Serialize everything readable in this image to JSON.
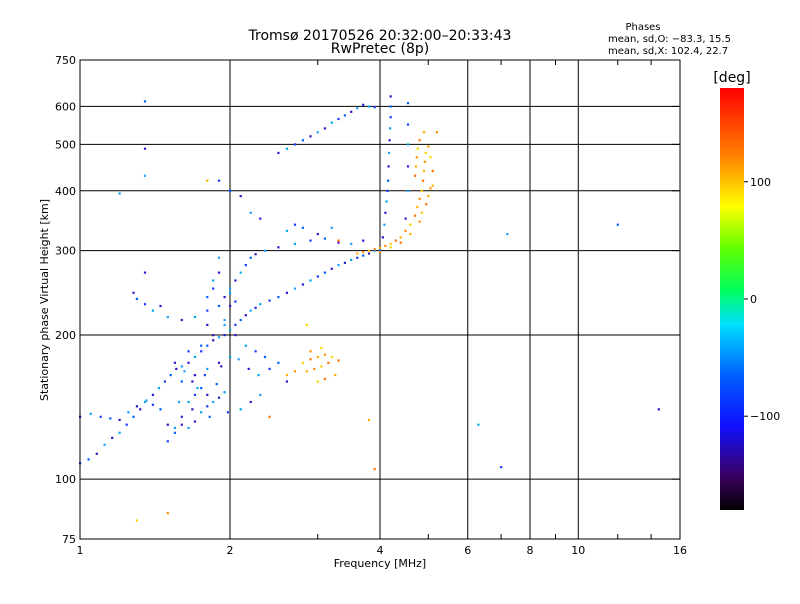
{
  "header": {
    "title": "Tromsø 20170526 20:32:00–20:33:43",
    "subtitle": "RwPretec (8p)"
  },
  "phase_box": {
    "heading": "Phases",
    "line_o": "mean, sd,O: −83.3, 15.5",
    "line_x": "mean, sd,X: 102.4, 22.7"
  },
  "chart_data": {
    "type": "scatter",
    "title": "Tromsø 20170526 20:32:00–20:33:43",
    "subtitle": "RwPretec (8p)",
    "xlabel": "Frequency [MHz]",
    "ylabel": "Stationary phase Virtual Height [km]",
    "x_scale": "log",
    "y_scale": "log",
    "xlim": [
      1,
      16
    ],
    "ylim": [
      75,
      750
    ],
    "x_ticks": [
      1,
      2,
      4,
      6,
      8,
      10,
      16
    ],
    "x_tick_labels": [
      "1",
      "2",
      "4",
      "6",
      "8",
      "10",
      "16"
    ],
    "y_ticks": [
      75,
      100,
      200,
      300,
      400,
      500,
      600,
      750
    ],
    "y_tick_labels": [
      "75",
      "100",
      "200",
      "300",
      "400",
      "500",
      "600",
      "750"
    ],
    "grid": true,
    "colorbar": {
      "label": "[deg]",
      "range": [
        -180,
        180
      ],
      "ticks": [
        100,
        0,
        -100
      ],
      "tick_labels": [
        "100",
        "0",
        "−100"
      ]
    },
    "series": [
      {
        "values": [
          [
            1.0,
            108
          ],
          [
            1.04,
            110
          ],
          [
            1.08,
            113
          ],
          [
            1.12,
            118
          ],
          [
            1.16,
            122
          ],
          [
            1.2,
            125
          ],
          [
            1.24,
            130
          ],
          [
            1.28,
            135
          ],
          [
            1.32,
            140
          ],
          [
            1.36,
            146
          ],
          [
            1.4,
            150
          ],
          [
            1.44,
            155
          ],
          [
            1.48,
            160
          ],
          [
            1.52,
            165
          ],
          [
            1.56,
            170
          ],
          [
            1.6,
            172
          ],
          [
            1.65,
            175
          ],
          [
            1.7,
            180
          ],
          [
            1.75,
            185
          ],
          [
            1.8,
            190
          ],
          [
            1.85,
            195
          ],
          [
            1.9,
            198
          ],
          [
            1.95,
            200
          ],
          [
            2.0,
            205
          ],
          [
            2.05,
            210
          ],
          [
            2.1,
            215
          ],
          [
            2.15,
            220
          ],
          [
            2.2,
            225
          ],
          [
            2.25,
            228
          ],
          [
            2.3,
            232
          ],
          [
            2.4,
            236
          ],
          [
            2.5,
            240
          ],
          [
            2.6,
            245
          ],
          [
            2.7,
            250
          ],
          [
            2.8,
            255
          ],
          [
            2.9,
            260
          ],
          [
            3.0,
            265
          ],
          [
            3.1,
            270
          ],
          [
            3.2,
            275
          ],
          [
            3.3,
            280
          ],
          [
            3.4,
            283
          ],
          [
            3.5,
            287
          ],
          [
            3.6,
            290
          ],
          [
            3.7,
            293
          ],
          [
            3.8,
            296
          ],
          [
            3.9,
            300
          ],
          [
            1.0,
            135
          ],
          [
            1.05,
            137
          ],
          [
            1.1,
            135
          ],
          [
            1.15,
            134
          ],
          [
            1.2,
            133
          ],
          [
            1.25,
            138
          ],
          [
            1.3,
            142
          ],
          [
            1.35,
            145
          ],
          [
            1.4,
            143
          ],
          [
            1.45,
            140
          ],
          [
            1.5,
            130
          ],
          [
            1.55,
            128
          ],
          [
            1.6,
            135
          ],
          [
            1.65,
            145
          ],
          [
            1.7,
            150
          ],
          [
            1.75,
            155
          ],
          [
            1.8,
            150
          ],
          [
            1.85,
            145
          ],
          [
            1.9,
            148
          ],
          [
            1.95,
            152
          ],
          [
            1.5,
            120
          ],
          [
            1.55,
            125
          ],
          [
            1.6,
            130
          ],
          [
            1.65,
            128
          ],
          [
            1.7,
            132
          ],
          [
            1.75,
            138
          ],
          [
            1.8,
            142
          ],
          [
            1.6,
            160
          ],
          [
            1.7,
            165
          ],
          [
            1.8,
            170
          ],
          [
            1.9,
            175
          ],
          [
            2.0,
            180
          ],
          [
            1.65,
            185
          ],
          [
            1.75,
            190
          ],
          [
            1.85,
            200
          ],
          [
            1.95,
            210
          ],
          [
            2.05,
            200
          ],
          [
            2.15,
            190
          ],
          [
            2.25,
            185
          ],
          [
            2.35,
            180
          ],
          [
            1.55,
            175
          ],
          [
            1.62,
            168
          ],
          [
            1.68,
            160
          ],
          [
            1.72,
            155
          ],
          [
            1.78,
            165
          ],
          [
            1.88,
            158
          ],
          [
            1.92,
            172
          ],
          [
            2.08,
            178
          ],
          [
            2.18,
            170
          ],
          [
            2.28,
            165
          ],
          [
            2.4,
            170
          ],
          [
            2.5,
            175
          ],
          [
            2.6,
            160
          ],
          [
            2.3,
            150
          ],
          [
            2.2,
            145
          ],
          [
            2.1,
            140
          ],
          [
            1.98,
            138
          ],
          [
            1.82,
            135
          ],
          [
            1.68,
            140
          ],
          [
            1.58,
            145
          ],
          [
            1.45,
            230
          ],
          [
            1.4,
            225
          ],
          [
            1.35,
            232
          ],
          [
            1.3,
            238
          ],
          [
            1.28,
            245
          ],
          [
            1.5,
            218
          ],
          [
            1.6,
            215
          ],
          [
            1.7,
            218
          ],
          [
            1.8,
            225
          ],
          [
            1.9,
            230
          ],
          [
            1.95,
            240
          ],
          [
            2.0,
            250
          ],
          [
            2.05,
            260
          ],
          [
            2.1,
            270
          ],
          [
            2.15,
            280
          ],
          [
            2.2,
            290
          ],
          [
            2.25,
            295
          ],
          [
            2.35,
            300
          ],
          [
            2.5,
            305
          ],
          [
            2.7,
            310
          ],
          [
            2.9,
            315
          ],
          [
            3.1,
            318
          ],
          [
            3.3,
            312
          ],
          [
            3.5,
            310
          ],
          [
            3.7,
            315
          ],
          [
            2.6,
            330
          ],
          [
            2.7,
            340
          ],
          [
            2.8,
            335
          ],
          [
            3.0,
            325
          ],
          [
            3.2,
            335
          ],
          [
            2.5,
            480
          ],
          [
            2.6,
            490
          ],
          [
            2.7,
            500
          ],
          [
            2.8,
            510
          ],
          [
            2.9,
            520
          ],
          [
            3.0,
            530
          ],
          [
            3.1,
            540
          ],
          [
            3.2,
            555
          ],
          [
            3.3,
            565
          ],
          [
            3.4,
            575
          ],
          [
            3.5,
            585
          ],
          [
            3.6,
            595
          ],
          [
            3.7,
            605
          ],
          [
            3.8,
            600
          ],
          [
            3.9,
            598
          ],
          [
            4.0,
            300
          ],
          [
            4.05,
            320
          ],
          [
            4.08,
            340
          ],
          [
            4.1,
            360
          ],
          [
            4.12,
            380
          ],
          [
            4.14,
            400
          ],
          [
            4.15,
            420
          ],
          [
            4.16,
            450
          ],
          [
            4.17,
            480
          ],
          [
            4.18,
            510
          ],
          [
            4.19,
            540
          ],
          [
            4.2,
            570
          ],
          [
            4.2,
            600
          ],
          [
            4.2,
            630
          ],
          [
            4.55,
            400
          ],
          [
            4.55,
            450
          ],
          [
            4.55,
            500
          ],
          [
            4.55,
            550
          ],
          [
            4.55,
            610
          ],
          [
            4.5,
            350
          ],
          [
            1.9,
            290
          ],
          [
            1.9,
            270
          ],
          [
            1.85,
            260
          ],
          [
            1.85,
            250
          ],
          [
            1.8,
            240
          ],
          [
            1.8,
            210
          ],
          [
            1.95,
            215
          ],
          [
            2.0,
            230
          ],
          [
            2.0,
            245
          ],
          [
            2.05,
            235
          ],
          [
            1.35,
            615
          ],
          [
            1.35,
            490
          ],
          [
            1.35,
            430
          ],
          [
            1.35,
            270
          ],
          [
            1.2,
            395
          ],
          [
            1.9,
            420
          ],
          [
            2.0,
            400
          ],
          [
            2.1,
            390
          ],
          [
            2.2,
            360
          ],
          [
            2.3,
            350
          ],
          [
            6.3,
            130
          ],
          [
            7.0,
            106
          ],
          [
            12.0,
            340
          ],
          [
            14.5,
            140
          ],
          [
            7.2,
            325
          ]
        ]
      },
      {
        "values": [
          [
            3.6,
            296
          ],
          [
            3.7,
            298
          ],
          [
            3.8,
            300
          ],
          [
            3.9,
            302
          ],
          [
            4.0,
            304
          ],
          [
            4.1,
            307
          ],
          [
            4.2,
            310
          ],
          [
            4.3,
            315
          ],
          [
            4.4,
            320
          ],
          [
            4.5,
            330
          ],
          [
            4.6,
            340
          ],
          [
            4.7,
            355
          ],
          [
            4.75,
            370
          ],
          [
            4.8,
            385
          ],
          [
            4.85,
            400
          ],
          [
            4.88,
            420
          ],
          [
            4.9,
            440
          ],
          [
            4.92,
            460
          ],
          [
            4.94,
            480
          ],
          [
            4.7,
            430
          ],
          [
            4.72,
            450
          ],
          [
            4.74,
            470
          ],
          [
            4.76,
            490
          ],
          [
            4.8,
            510
          ],
          [
            4.9,
            530
          ],
          [
            5.0,
            495
          ],
          [
            5.05,
            470
          ],
          [
            5.1,
            440
          ],
          [
            5.1,
            410
          ],
          [
            4.0,
            298
          ],
          [
            4.2,
            305
          ],
          [
            4.4,
            312
          ],
          [
            4.6,
            325
          ],
          [
            4.8,
            345
          ],
          [
            4.85,
            360
          ],
          [
            4.95,
            375
          ],
          [
            5.0,
            390
          ],
          [
            5.05,
            405
          ],
          [
            2.8,
            175
          ],
          [
            2.9,
            178
          ],
          [
            3.0,
            180
          ],
          [
            3.1,
            182
          ],
          [
            3.2,
            180
          ],
          [
            3.3,
            177
          ],
          [
            2.85,
            168
          ],
          [
            2.95,
            170
          ],
          [
            3.05,
            172
          ],
          [
            3.15,
            175
          ],
          [
            2.6,
            165
          ],
          [
            2.7,
            168
          ],
          [
            3.0,
            160
          ],
          [
            3.1,
            162
          ],
          [
            3.25,
            165
          ],
          [
            2.9,
            185
          ],
          [
            3.05,
            188
          ],
          [
            2.4,
            135
          ],
          [
            1.8,
            420
          ],
          [
            1.5,
            85
          ],
          [
            1.3,
            82
          ],
          [
            3.9,
            105
          ],
          [
            3.8,
            133
          ],
          [
            5.2,
            530
          ],
          [
            2.85,
            210
          ],
          [
            3.3,
            315
          ]
        ]
      }
    ]
  }
}
